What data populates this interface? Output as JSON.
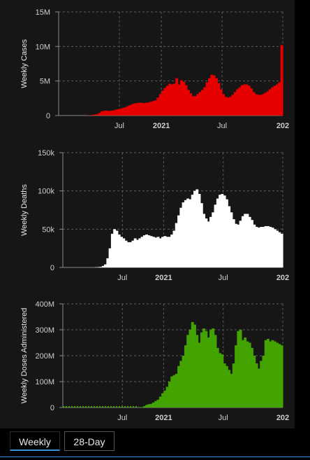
{
  "tabs": [
    {
      "label": "Weekly",
      "selected": true
    },
    {
      "label": "28-Day",
      "selected": false
    }
  ],
  "chart_data": [
    {
      "type": "bar",
      "ylabel": "Weekly Cases",
      "color": "#e60000",
      "ylim": [
        0,
        15000000
      ],
      "yticks": [
        0,
        5000000,
        10000000,
        15000000
      ],
      "ytick_labels": [
        "0",
        "5M",
        "10M",
        "15M"
      ],
      "xticks": [
        {
          "week": 26,
          "label": "Jul",
          "bold": false
        },
        {
          "week": 44,
          "label": "2021",
          "bold": true
        },
        {
          "week": 70,
          "label": "Jul",
          "bold": false
        },
        {
          "week": 96,
          "label": "202",
          "bold": true
        }
      ],
      "grid": true,
      "values": [
        0,
        0,
        0,
        0,
        0.01,
        0.02,
        0.04,
        0.1,
        0.15,
        0.2,
        0.4,
        0.6,
        0.7,
        0.7,
        0.65,
        0.7,
        0.75,
        0.85,
        0.9,
        1.0,
        1.1,
        1.2,
        1.35,
        1.5,
        1.65,
        1.75,
        1.8,
        1.85,
        1.85,
        1.8,
        1.85,
        1.9,
        2.0,
        2.1,
        2.2,
        2.6,
        3.1,
        3.6,
        4.0,
        4.3,
        4.6,
        4.5,
        4.6,
        5.4,
        4.5,
        5.1,
        4.9,
        4.4,
        3.7,
        3.2,
        2.8,
        2.8,
        3.1,
        3.4,
        3.7,
        4.1,
        4.8,
        5.4,
        5.9,
        5.8,
        5.4,
        4.7,
        3.8,
        3.1,
        2.7,
        2.6,
        2.7,
        3.0,
        3.4,
        3.8,
        4.1,
        4.4,
        4.5,
        4.5,
        4.3,
        3.9,
        3.4,
        3.1,
        3.0,
        3.0,
        3.1,
        3.3,
        3.5,
        3.8,
        4.1,
        4.3,
        4.5,
        4.8,
        10.2
      ],
      "value_scale": 1000000
    },
    {
      "type": "bar",
      "ylabel": "Weekly Deaths",
      "color": "#ffffff",
      "ylim": [
        0,
        150000
      ],
      "yticks": [
        0,
        50000,
        100000,
        150000
      ],
      "ytick_labels": [
        "0",
        "50k",
        "100k",
        "150k"
      ],
      "xticks": [
        {
          "week": 26,
          "label": "Jul",
          "bold": false
        },
        {
          "week": 44,
          "label": "2021",
          "bold": true
        },
        {
          "week": 70,
          "label": "Jul",
          "bold": false
        },
        {
          "week": 96,
          "label": "202",
          "bold": true
        }
      ],
      "grid": true,
      "values": [
        0,
        0.3,
        0.5,
        0.8,
        2,
        4,
        12,
        25,
        44,
        50,
        48,
        43,
        40,
        38,
        35,
        33,
        33,
        35,
        38,
        36,
        38,
        40,
        42,
        43,
        42,
        41,
        40,
        39,
        40,
        38,
        40,
        41,
        40,
        40,
        43,
        48,
        58,
        68,
        78,
        85,
        88,
        90,
        89,
        95,
        100,
        102,
        96,
        84,
        70,
        64,
        60,
        66,
        72,
        82,
        90,
        95,
        96,
        94,
        89,
        80,
        72,
        63,
        57,
        56,
        61,
        67,
        70,
        70,
        66,
        62,
        56,
        53,
        52,
        53,
        53,
        54,
        54,
        53,
        52,
        50,
        48,
        46,
        44
      ],
      "value_scale": 1000
    },
    {
      "type": "bar",
      "ylabel": "Weekly Doses Administered",
      "color": "#43a300",
      "ylim": [
        0,
        400000000
      ],
      "yticks": [
        0,
        100000000,
        200000000,
        300000000,
        400000000
      ],
      "ytick_labels": [
        "0",
        "100M",
        "200M",
        "300M",
        "400M"
      ],
      "xticks": [
        {
          "week": 26,
          "label": "Jul",
          "bold": false
        },
        {
          "week": 44,
          "label": "2021",
          "bold": true
        },
        {
          "week": 70,
          "label": "Jul",
          "bold": false
        },
        {
          "week": 96,
          "label": "202",
          "bold": true
        }
      ],
      "grid": true,
      "dotted_baseline_weeks": 48,
      "values": [
        0.5,
        1.5,
        5,
        10,
        13,
        14,
        19,
        25,
        30,
        42,
        55,
        65,
        80,
        100,
        120,
        125,
        130,
        160,
        180,
        200,
        240,
        280,
        300,
        330,
        320,
        280,
        250,
        290,
        305,
        295,
        270,
        300,
        305,
        280,
        230,
        210,
        205,
        170,
        160,
        145,
        130,
        170,
        240,
        295,
        300,
        260,
        270,
        255,
        250,
        230,
        200,
        170,
        150,
        180,
        200,
        260,
        265,
        255,
        260,
        255,
        250,
        245,
        240
      ],
      "value_scale": 1000000
    }
  ]
}
